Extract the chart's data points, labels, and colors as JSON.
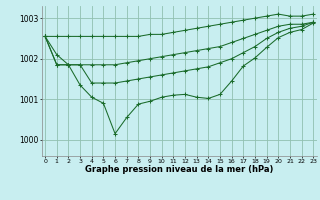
{
  "xlabel": "Graphe pression niveau de la mer (hPa)",
  "bg_color": "#c8eef0",
  "grid_color": "#90c0b0",
  "line_color": "#1a6b2a",
  "ylim": [
    999.6,
    1003.3
  ],
  "xlim": [
    -0.3,
    23.3
  ],
  "yticks": [
    1000,
    1001,
    1002,
    1003
  ],
  "xticks": [
    0,
    1,
    2,
    3,
    4,
    5,
    6,
    7,
    8,
    9,
    10,
    11,
    12,
    13,
    14,
    15,
    16,
    17,
    18,
    19,
    20,
    21,
    22,
    23
  ],
  "series": [
    [
      1002.55,
      1002.55,
      1002.55,
      1002.55,
      1002.55,
      1002.55,
      1002.55,
      1002.55,
      1002.55,
      1002.6,
      1002.6,
      1002.65,
      1002.7,
      1002.75,
      1002.8,
      1002.85,
      1002.9,
      1002.95,
      1003.0,
      1003.05,
      1003.1,
      1003.05,
      1003.05,
      1003.1
    ],
    [
      1002.55,
      1002.1,
      1001.85,
      1001.85,
      1001.85,
      1001.85,
      1001.85,
      1001.9,
      1001.95,
      1002.0,
      1002.05,
      1002.1,
      1002.15,
      1002.2,
      1002.25,
      1002.3,
      1002.4,
      1002.5,
      1002.6,
      1002.7,
      1002.8,
      1002.85,
      1002.85,
      1002.9
    ],
    [
      1002.55,
      1001.85,
      1001.85,
      1001.85,
      1001.4,
      1001.4,
      1001.4,
      1001.45,
      1001.5,
      1001.55,
      1001.6,
      1001.65,
      1001.7,
      1001.75,
      1001.8,
      1001.9,
      1002.0,
      1002.15,
      1002.3,
      1002.5,
      1002.65,
      1002.75,
      1002.8,
      1002.9
    ],
    [
      1002.55,
      1001.85,
      1001.85,
      1001.35,
      1001.05,
      1000.9,
      1000.15,
      1000.55,
      1000.88,
      1000.95,
      1001.05,
      1001.1,
      1001.12,
      1001.05,
      1001.02,
      1001.12,
      1001.45,
      1001.82,
      1002.02,
      1002.28,
      1002.52,
      1002.65,
      1002.72,
      1002.88
    ]
  ]
}
